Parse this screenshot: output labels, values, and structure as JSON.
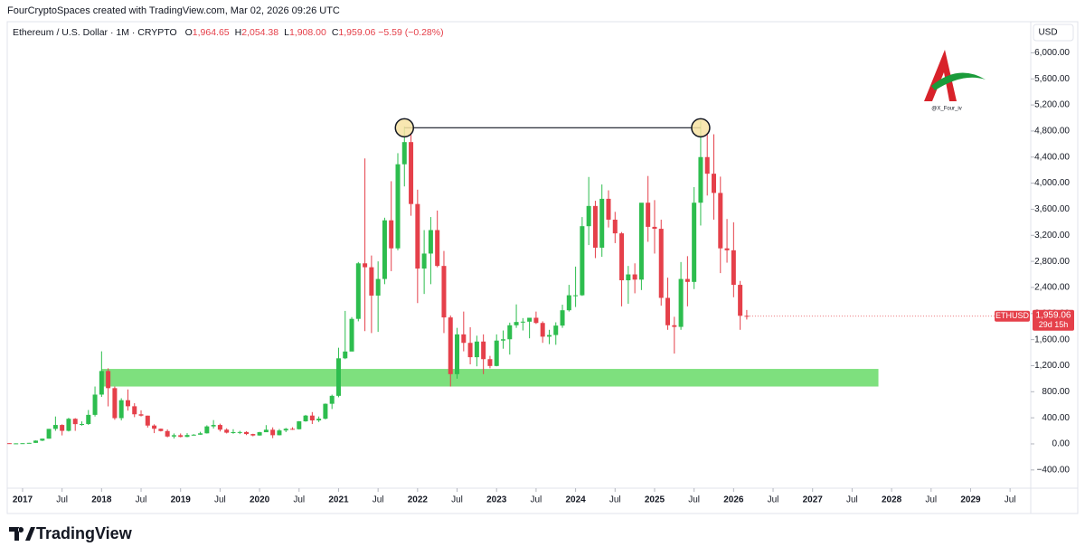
{
  "header": {
    "text": "FourCryptoSpaces created with TradingView.com, Mar 02, 2026 09:26 UTC"
  },
  "legend": {
    "symbol": "Ethereum / U.S. Dollar · 1M · CRYPTO",
    "fields": [
      {
        "key": "O",
        "value": "1,964.65"
      },
      {
        "key": "H",
        "value": "2,054.38"
      },
      {
        "key": "L",
        "value": "1,908.00"
      },
      {
        "key": "C",
        "value": "1,959.06"
      }
    ],
    "change": "−5.59 (−0.28%)"
  },
  "branding": {
    "logo": "TradingView",
    "watermark": "@X_Four_iv"
  },
  "chart_data": {
    "type": "candlestick",
    "currency": "USD",
    "ticker": "ETHUSD",
    "price_label": "1,959.06",
    "countdown": "29d 15h",
    "up_color": "#2dbd4e",
    "down_color": "#e5404a",
    "grid": false,
    "x": [
      "2016-11",
      "2016-12",
      "2017-01",
      "2017-02",
      "2017-03",
      "2017-04",
      "2017-05",
      "2017-06",
      "2017-07",
      "2017-08",
      "2017-09",
      "2017-10",
      "2017-11",
      "2017-12",
      "2018-01",
      "2018-02",
      "2018-03",
      "2018-04",
      "2018-05",
      "2018-06",
      "2018-07",
      "2018-08",
      "2018-09",
      "2018-10",
      "2018-11",
      "2018-12",
      "2019-01",
      "2019-02",
      "2019-03",
      "2019-04",
      "2019-05",
      "2019-06",
      "2019-07",
      "2019-08",
      "2019-09",
      "2019-10",
      "2019-11",
      "2019-12",
      "2020-01",
      "2020-02",
      "2020-03",
      "2020-04",
      "2020-05",
      "2020-06",
      "2020-07",
      "2020-08",
      "2020-09",
      "2020-10",
      "2020-11",
      "2020-12",
      "2021-01",
      "2021-02",
      "2021-03",
      "2021-04",
      "2021-05",
      "2021-06",
      "2021-07",
      "2021-08",
      "2021-09",
      "2021-10",
      "2021-11",
      "2021-12",
      "2022-01",
      "2022-02",
      "2022-03",
      "2022-04",
      "2022-05",
      "2022-06",
      "2022-07",
      "2022-08",
      "2022-09",
      "2022-10",
      "2022-11",
      "2022-12",
      "2023-01",
      "2023-02",
      "2023-03",
      "2023-04",
      "2023-05",
      "2023-06",
      "2023-07",
      "2023-08",
      "2023-09",
      "2023-10",
      "2023-11",
      "2023-12",
      "2024-01",
      "2024-02",
      "2024-03",
      "2024-04",
      "2024-05",
      "2024-06",
      "2024-07",
      "2024-08",
      "2024-09",
      "2024-10",
      "2024-11",
      "2024-12",
      "2025-01",
      "2025-02",
      "2025-03",
      "2025-04",
      "2025-05",
      "2025-06",
      "2025-07",
      "2025-08",
      "2025-09",
      "2025-10",
      "2025-11",
      "2025-12",
      "2026-01",
      "2026-02",
      "2026-03"
    ],
    "open": [
      11,
      8,
      8,
      10.7,
      15.7,
      50,
      80,
      230,
      290,
      200,
      385,
      303,
      305,
      445,
      756,
      1118,
      855,
      395,
      670,
      577,
      454,
      433,
      281,
      232,
      197,
      113,
      133,
      107,
      136,
      141,
      162,
      268,
      290,
      218,
      172,
      180,
      182,
      151,
      129,
      179,
      217,
      133,
      206,
      231,
      225,
      346,
      434,
      360,
      386,
      615,
      737,
      1313,
      1417,
      1918,
      2770,
      2710,
      2275,
      2530,
      3430,
      3000,
      4290,
      4630,
      3680,
      2690,
      2920,
      3280,
      2730,
      1940,
      1070,
      1680,
      1550,
      1330,
      1570,
      1300,
      1195,
      1585,
      1605,
      1820,
      1870,
      1875,
      1935,
      1855,
      1645,
      1670,
      1815,
      2050,
      2280,
      2280,
      3340,
      3650,
      3010,
      3760,
      3440,
      3230,
      2510,
      2600,
      2520,
      3700,
      3330,
      3300,
      2240,
      1820,
      1795,
      2530,
      2485,
      3700,
      4400,
      4145,
      3850,
      3000,
      2970,
      2440,
      1964.65
    ],
    "high": [
      11,
      8.5,
      11,
      16,
      53,
      80,
      230,
      420,
      300,
      400,
      395,
      345,
      520,
      880,
      1420,
      1160,
      880,
      700,
      835,
      625,
      515,
      433,
      300,
      235,
      222,
      160,
      160,
      165,
      150,
      185,
      285,
      365,
      310,
      239,
      225,
      200,
      193,
      155,
      185,
      288,
      253,
      228,
      245,
      255,
      350,
      445,
      488,
      420,
      620,
      755,
      1475,
      2040,
      1945,
      2790,
      4380,
      2890,
      2800,
      3470,
      4030,
      4460,
      4870,
      4780,
      3900,
      3280,
      3480,
      3580,
      2960,
      1970,
      1780,
      2030,
      1790,
      1660,
      1680,
      1350,
      1680,
      1740,
      1860,
      2140,
      1930,
      1930,
      2030,
      1880,
      1750,
      1865,
      2135,
      2440,
      2720,
      3480,
      4095,
      3730,
      3980,
      3890,
      3560,
      3250,
      2730,
      2770,
      3680,
      4110,
      3740,
      3440,
      2550,
      1950,
      2790,
      2880,
      3940,
      4950,
      4770,
      4750,
      4100,
      3450,
      3400,
      2500,
      2054.38
    ],
    "low": [
      8,
      6,
      8,
      10,
      15,
      43,
      80,
      200,
      130,
      190,
      200,
      280,
      290,
      420,
      720,
      575,
      370,
      360,
      510,
      410,
      420,
      250,
      165,
      190,
      100,
      82,
      100,
      102,
      128,
      140,
      158,
      235,
      190,
      160,
      155,
      150,
      135,
      116,
      126,
      180,
      88,
      130,
      180,
      215,
      220,
      340,
      305,
      335,
      375,
      535,
      715,
      1300,
      1435,
      1880,
      1730,
      1700,
      1718,
      2450,
      2650,
      2970,
      3950,
      3500,
      2160,
      2300,
      2450,
      2710,
      1700,
      880,
      1000,
      1420,
      1220,
      1190,
      1070,
      1160,
      1190,
      1460,
      1370,
      1780,
      1740,
      1620,
      1840,
      1550,
      1530,
      1520,
      1780,
      2030,
      2100,
      2270,
      3050,
      2850,
      2870,
      3320,
      3080,
      2110,
      2150,
      2310,
      2360,
      3100,
      2920,
      2120,
      1750,
      1385,
      1750,
      2110,
      2375,
      3350,
      3810,
      3440,
      2620,
      2780,
      2250,
      1750,
      1908
    ],
    "close": [
      8,
      8,
      10.7,
      15.7,
      50,
      80,
      230,
      290,
      200,
      385,
      303,
      305,
      445,
      756,
      1118,
      855,
      395,
      670,
      577,
      454,
      433,
      281,
      232,
      197,
      113,
      133,
      107,
      136,
      141,
      162,
      268,
      290,
      218,
      172,
      180,
      182,
      151,
      129,
      179,
      217,
      133,
      206,
      231,
      225,
      346,
      434,
      360,
      386,
      615,
      737,
      1313,
      1417,
      1918,
      2770,
      2710,
      2275,
      2530,
      3430,
      3000,
      4290,
      4630,
      3680,
      2690,
      2920,
      3280,
      2730,
      1940,
      1070,
      1680,
      1550,
      1330,
      1570,
      1300,
      1195,
      1585,
      1605,
      1820,
      1870,
      1875,
      1935,
      1855,
      1645,
      1670,
      1815,
      2050,
      2280,
      2280,
      3340,
      3650,
      3010,
      3760,
      3440,
      3230,
      2510,
      2600,
      2520,
      3700,
      3330,
      3300,
      2240,
      1820,
      1795,
      2530,
      2485,
      3700,
      4400,
      4145,
      3850,
      3000,
      2970,
      2440,
      1965,
      1959.06
    ],
    "xlim": [
      "2016-11",
      "2029-10"
    ],
    "xticks": [
      {
        "value": "2017-01",
        "label": "2017"
      },
      {
        "value": "2017-07",
        "label": "Jul"
      },
      {
        "value": "2018-01",
        "label": "2018"
      },
      {
        "value": "2018-07",
        "label": "Jul"
      },
      {
        "value": "2019-01",
        "label": "2019"
      },
      {
        "value": "2019-07",
        "label": "Jul"
      },
      {
        "value": "2020-01",
        "label": "2020"
      },
      {
        "value": "2020-07",
        "label": "Jul"
      },
      {
        "value": "2021-01",
        "label": "2021"
      },
      {
        "value": "2021-07",
        "label": "Jul"
      },
      {
        "value": "2022-01",
        "label": "2022"
      },
      {
        "value": "2022-07",
        "label": "Jul"
      },
      {
        "value": "2023-01",
        "label": "2023"
      },
      {
        "value": "2023-07",
        "label": "Jul"
      },
      {
        "value": "2024-01",
        "label": "2024"
      },
      {
        "value": "2024-07",
        "label": "Jul"
      },
      {
        "value": "2025-01",
        "label": "2025"
      },
      {
        "value": "2025-07",
        "label": "Jul"
      },
      {
        "value": "2026-01",
        "label": "2026"
      },
      {
        "value": "2026-07",
        "label": "Jul"
      },
      {
        "value": "2027-01",
        "label": "2027"
      },
      {
        "value": "2027-07",
        "label": "Jul"
      },
      {
        "value": "2028-01",
        "label": "2028"
      },
      {
        "value": "2028-07",
        "label": "Jul"
      },
      {
        "value": "2029-01",
        "label": "2029"
      },
      {
        "value": "2029-07",
        "label": "Jul"
      }
    ],
    "ylim": [
      -680,
      6186
    ],
    "yticks": [
      {
        "value": -400,
        "label": "−400.00"
      },
      {
        "value": 0,
        "label": "0.00"
      },
      {
        "value": 400,
        "label": "400.00"
      },
      {
        "value": 800,
        "label": "800.00"
      },
      {
        "value": 1200,
        "label": "1,200.00"
      },
      {
        "value": 1600,
        "label": "1,600.00"
      },
      {
        "value": 2000,
        "label": "2,000.00"
      },
      {
        "value": 2400,
        "label": "2,400.00"
      },
      {
        "value": 2800,
        "label": "2,800.00"
      },
      {
        "value": 3200,
        "label": "3,200.00"
      },
      {
        "value": 3600,
        "label": "3,600.00"
      },
      {
        "value": 4000,
        "label": "4,000.00"
      },
      {
        "value": 4400,
        "label": "4,400.00"
      },
      {
        "value": 4800,
        "label": "4,800.00"
      },
      {
        "value": 5200,
        "label": "5,200.00"
      },
      {
        "value": 5600,
        "label": "5,600.00"
      },
      {
        "value": 6000,
        "label": "6,000.00"
      }
    ],
    "zones": [
      {
        "from": "2018-01",
        "to": "2027-11",
        "low": 880,
        "high": 1150,
        "color": "#7ee07e"
      }
    ],
    "lines": [
      {
        "x": [
          "2021-11",
          "2025-08"
        ],
        "y": 4850,
        "color": "#131722"
      }
    ]
  }
}
